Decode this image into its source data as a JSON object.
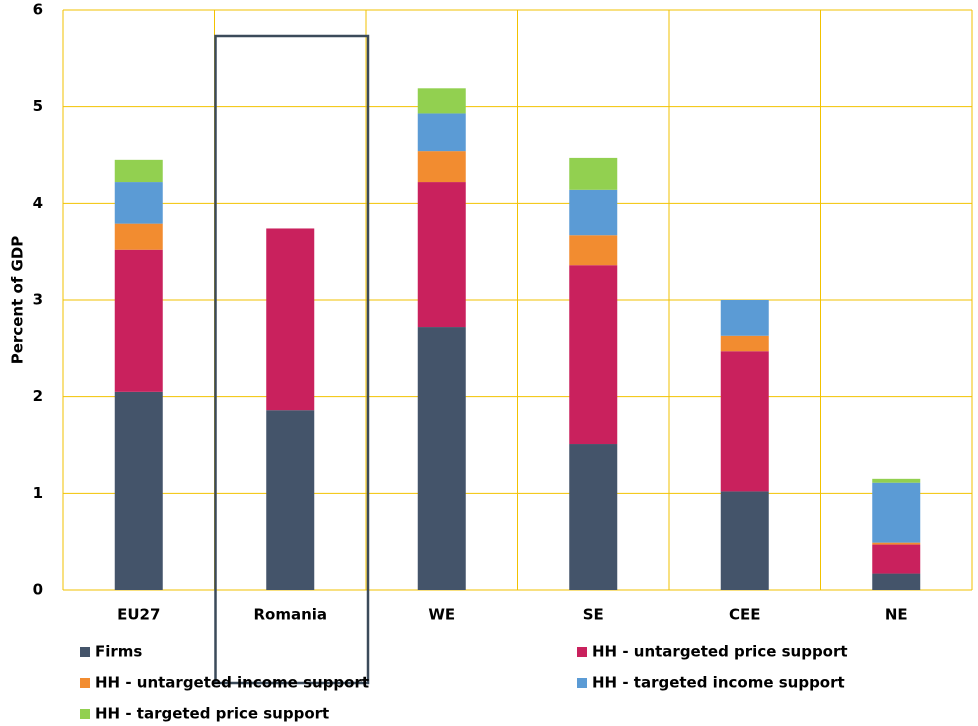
{
  "chart_data": {
    "type": "stacked-bar",
    "y_label": "Percent of GDP",
    "categories": [
      "EU27",
      "Romania",
      "WE",
      "SE",
      "CEE",
      "NE"
    ],
    "series": [
      {
        "name": "Firms",
        "color": "#44546a",
        "values": [
          2.05,
          1.86,
          2.72,
          1.51,
          1.02,
          0.17
        ]
      },
      {
        "name": "HH - untargeted price support",
        "color": "#c9215d",
        "values": [
          1.47,
          1.88,
          1.5,
          1.85,
          1.45,
          0.3
        ]
      },
      {
        "name": "HH - untargeted income support",
        "color": "#f28c30",
        "values": [
          0.27,
          0,
          0.32,
          0.31,
          0.16,
          0.02
        ]
      },
      {
        "name": "HH - targeted income support",
        "color": "#5b9bd5",
        "values": [
          0.43,
          0,
          0.39,
          0.47,
          0.37,
          0.62
        ]
      },
      {
        "name": "HH - targeted price support",
        "color": "#92d050",
        "values": [
          0.23,
          0,
          0.26,
          0.33,
          0,
          0.04
        ]
      }
    ],
    "ylim": [
      0,
      6
    ],
    "yticks": [
      0,
      1,
      2,
      3,
      4,
      5,
      6
    ],
    "grid": true,
    "grid_color": "#f2c200",
    "legend": "bottom"
  }
}
